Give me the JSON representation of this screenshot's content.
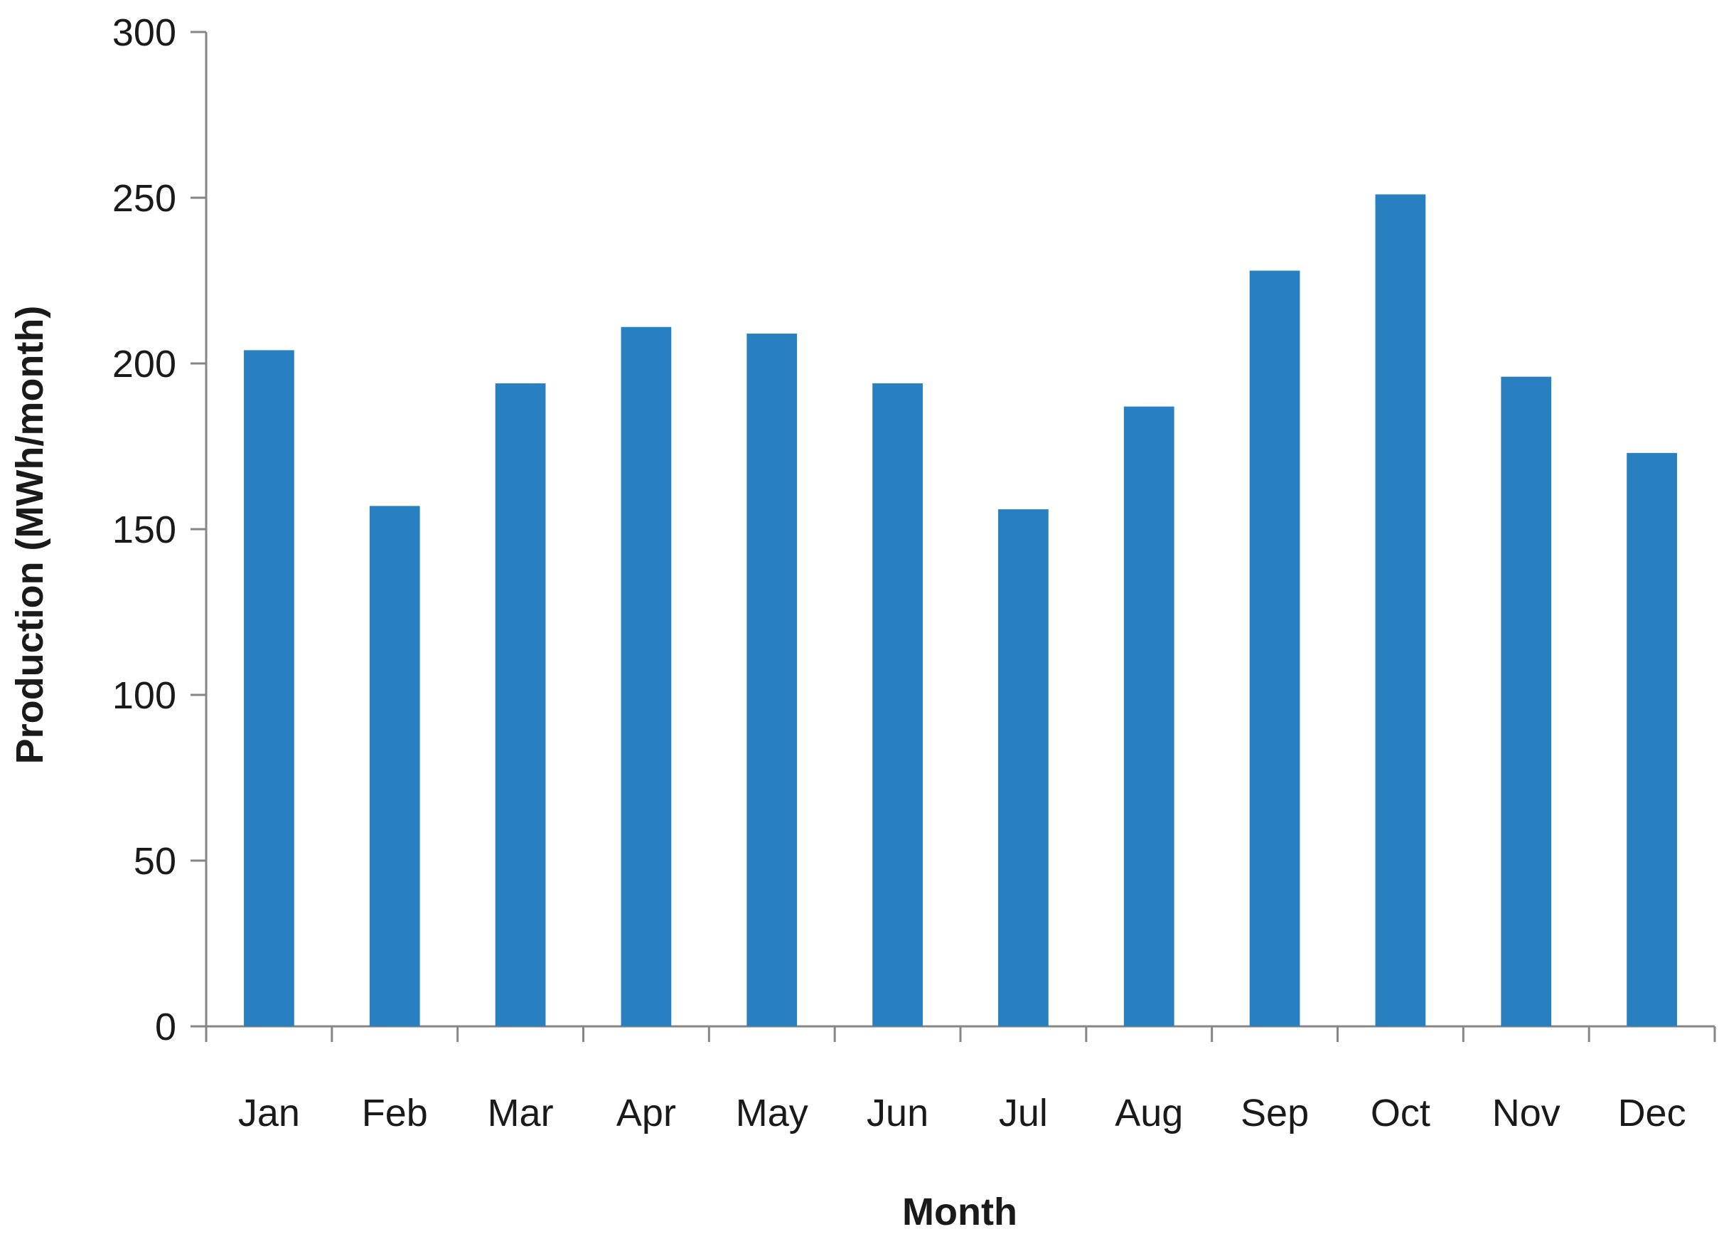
{
  "chart_data": {
    "type": "bar",
    "title": "",
    "xlabel": "Month",
    "ylabel": "Production (MWh/month)",
    "categories": [
      "Jan",
      "Feb",
      "Mar",
      "Apr",
      "May",
      "Jun",
      "Jul",
      "Aug",
      "Sep",
      "Oct",
      "Nov",
      "Dec"
    ],
    "series": [
      {
        "values": [
          204,
          157,
          194,
          211,
          209,
          194,
          156,
          187,
          228,
          251,
          196,
          173
        ],
        "color": "#2980C0"
      }
    ],
    "ylim": [
      0,
      300
    ],
    "yticks": [
      0,
      50,
      100,
      150,
      200,
      250,
      300
    ],
    "grid": false,
    "legend": "none"
  }
}
